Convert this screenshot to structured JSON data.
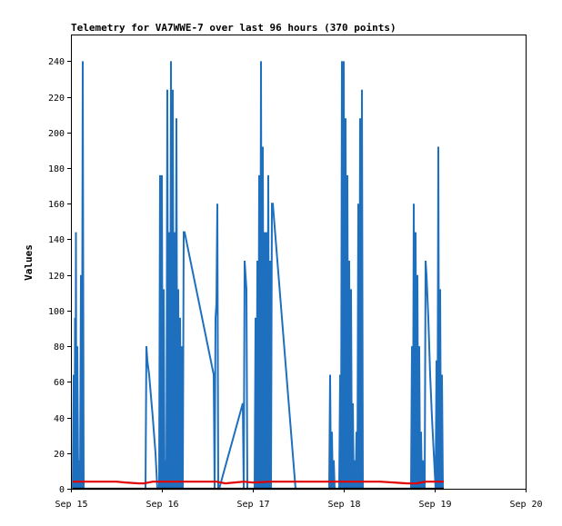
{
  "chart_data": {
    "type": "line",
    "title": "Telemetry for VA7WWE-7 over last 96 hours (370 points)",
    "xlabel": "",
    "ylabel": "Values",
    "x_ticks": [
      "Sep 15",
      "Sep 16",
      "Sep 17",
      "Sep 18",
      "Sep 19",
      "Sep 20"
    ],
    "xlim": [
      "Sep 15",
      "Sep 20"
    ],
    "x_units": "days since Sep 15 00:00",
    "ylim": [
      0,
      255
    ],
    "y_ticks": [
      0,
      20,
      40,
      60,
      80,
      100,
      120,
      140,
      160,
      180,
      200,
      220,
      240
    ],
    "grid": false,
    "colors": {
      "series_blue": "#1f6fbf",
      "series_red": "#e00000",
      "series_black": "#000000"
    },
    "series": [
      {
        "name": "",
        "color": "#1f6fbf",
        "points": [
          [
            0.02,
            0
          ],
          [
            0.03,
            64
          ],
          [
            0.04,
            0
          ],
          [
            0.045,
            96
          ],
          [
            0.05,
            0
          ],
          [
            0.055,
            144
          ],
          [
            0.06,
            0
          ],
          [
            0.07,
            80
          ],
          [
            0.08,
            0
          ],
          [
            0.085,
            16
          ],
          [
            0.09,
            0
          ],
          [
            0.1,
            0
          ],
          [
            0.11,
            120
          ],
          [
            0.12,
            0
          ],
          [
            0.13,
            240
          ],
          [
            0.14,
            0
          ],
          [
            0.82,
            0
          ],
          [
            0.83,
            80
          ],
          [
            0.84,
            72
          ],
          [
            0.86,
            64
          ],
          [
            0.9,
            40
          ],
          [
            0.93,
            20
          ],
          [
            0.95,
            0
          ],
          [
            0.97,
            0
          ],
          [
            0.98,
            176
          ],
          [
            0.99,
            0
          ],
          [
            1.0,
            176
          ],
          [
            1.01,
            0
          ],
          [
            1.02,
            112
          ],
          [
            1.03,
            0
          ],
          [
            1.04,
            16
          ],
          [
            1.05,
            0
          ],
          [
            1.06,
            224
          ],
          [
            1.07,
            0
          ],
          [
            1.08,
            144
          ],
          [
            1.09,
            0
          ],
          [
            1.1,
            240
          ],
          [
            1.11,
            0
          ],
          [
            1.12,
            224
          ],
          [
            1.13,
            0
          ],
          [
            1.14,
            144
          ],
          [
            1.15,
            0
          ],
          [
            1.16,
            208
          ],
          [
            1.17,
            0
          ],
          [
            1.18,
            112
          ],
          [
            1.19,
            0
          ],
          [
            1.2,
            96
          ],
          [
            1.21,
            0
          ],
          [
            1.22,
            80
          ],
          [
            1.23,
            0
          ],
          [
            1.24,
            144
          ],
          [
            1.25,
            144
          ],
          [
            1.57,
            64
          ],
          [
            1.58,
            0
          ],
          [
            1.59,
            96
          ],
          [
            1.6,
            104
          ],
          [
            1.61,
            160
          ],
          [
            1.62,
            0
          ],
          [
            1.63,
            0
          ],
          [
            1.89,
            48
          ],
          [
            1.9,
            0
          ],
          [
            1.91,
            128
          ],
          [
            1.92,
            120
          ],
          [
            1.93,
            112
          ],
          [
            1.94,
            0
          ],
          [
            2.02,
            0
          ],
          [
            2.03,
            96
          ],
          [
            2.04,
            0
          ],
          [
            2.05,
            128
          ],
          [
            2.06,
            0
          ],
          [
            2.07,
            176
          ],
          [
            2.08,
            0
          ],
          [
            2.09,
            240
          ],
          [
            2.1,
            0
          ],
          [
            2.11,
            192
          ],
          [
            2.12,
            0
          ],
          [
            2.13,
            144
          ],
          [
            2.14,
            0
          ],
          [
            2.15,
            144
          ],
          [
            2.16,
            0
          ],
          [
            2.17,
            176
          ],
          [
            2.18,
            0
          ],
          [
            2.19,
            128
          ],
          [
            2.2,
            0
          ],
          [
            2.21,
            160
          ],
          [
            2.22,
            160
          ],
          [
            2.47,
            0
          ],
          [
            2.84,
            0
          ],
          [
            2.85,
            64
          ],
          [
            2.86,
            0
          ],
          [
            2.87,
            32
          ],
          [
            2.88,
            0
          ],
          [
            2.89,
            16
          ],
          [
            2.9,
            0
          ],
          [
            2.95,
            0
          ],
          [
            2.96,
            64
          ],
          [
            2.97,
            0
          ],
          [
            2.98,
            240
          ],
          [
            2.99,
            0
          ],
          [
            3.0,
            240
          ],
          [
            3.01,
            0
          ],
          [
            3.02,
            208
          ],
          [
            3.03,
            0
          ],
          [
            3.04,
            176
          ],
          [
            3.05,
            0
          ],
          [
            3.06,
            128
          ],
          [
            3.07,
            0
          ],
          [
            3.08,
            112
          ],
          [
            3.09,
            0
          ],
          [
            3.1,
            48
          ],
          [
            3.11,
            0
          ],
          [
            3.12,
            16
          ],
          [
            3.13,
            0
          ],
          [
            3.14,
            32
          ],
          [
            3.15,
            0
          ],
          [
            3.16,
            160
          ],
          [
            3.17,
            0
          ],
          [
            3.18,
            208
          ],
          [
            3.19,
            0
          ],
          [
            3.2,
            224
          ],
          [
            3.21,
            0
          ],
          [
            3.22,
            0
          ],
          [
            3.74,
            0
          ],
          [
            3.75,
            80
          ],
          [
            3.76,
            0
          ],
          [
            3.77,
            160
          ],
          [
            3.78,
            0
          ],
          [
            3.79,
            144
          ],
          [
            3.8,
            0
          ],
          [
            3.81,
            120
          ],
          [
            3.82,
            0
          ],
          [
            3.83,
            80
          ],
          [
            3.84,
            0
          ],
          [
            3.85,
            32
          ],
          [
            3.86,
            0
          ],
          [
            3.87,
            16
          ],
          [
            3.88,
            0
          ],
          [
            3.89,
            0
          ],
          [
            3.9,
            128
          ],
          [
            3.91,
            120
          ],
          [
            3.93,
            96
          ],
          [
            3.95,
            64
          ],
          [
            3.97,
            40
          ],
          [
            3.99,
            20
          ],
          [
            4.01,
            0
          ],
          [
            4.02,
            72
          ],
          [
            4.03,
            0
          ],
          [
            4.04,
            192
          ],
          [
            4.05,
            0
          ],
          [
            4.06,
            112
          ],
          [
            4.07,
            0
          ],
          [
            4.08,
            64
          ],
          [
            4.09,
            0
          ],
          [
            4.1,
            0
          ]
        ]
      },
      {
        "name": "",
        "color": "#e00000",
        "points": [
          [
            0.02,
            4
          ],
          [
            0.5,
            4
          ],
          [
            0.6,
            3.5
          ],
          [
            0.75,
            3
          ],
          [
            0.8,
            3
          ],
          [
            0.9,
            4
          ],
          [
            1.3,
            4
          ],
          [
            1.6,
            4
          ],
          [
            1.7,
            3
          ],
          [
            1.8,
            3.5
          ],
          [
            1.9,
            4
          ],
          [
            2.0,
            3.5
          ],
          [
            2.2,
            4
          ],
          [
            2.5,
            4
          ],
          [
            3.0,
            4
          ],
          [
            3.4,
            4
          ],
          [
            3.55,
            3.5
          ],
          [
            3.7,
            3
          ],
          [
            3.8,
            3
          ],
          [
            3.9,
            4
          ],
          [
            4.1,
            4
          ]
        ]
      },
      {
        "name": "",
        "color": "#000000",
        "points": [
          [
            0.02,
            0
          ],
          [
            4.1,
            0
          ]
        ]
      }
    ]
  }
}
